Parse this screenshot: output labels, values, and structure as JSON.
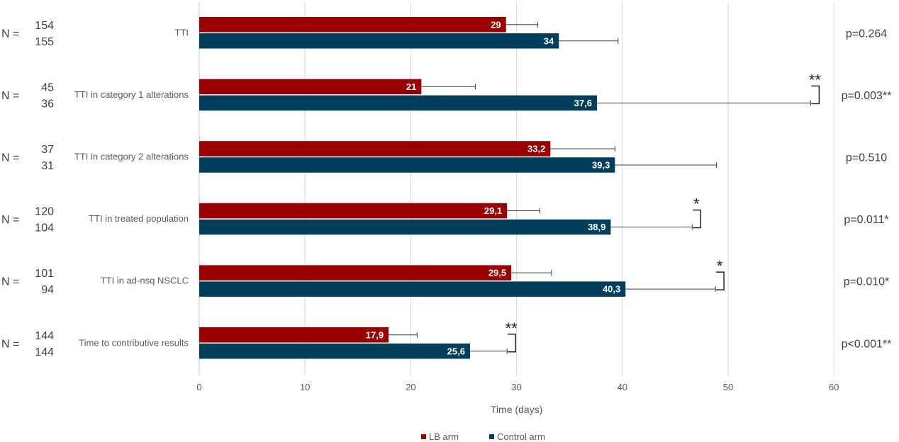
{
  "chart_data": {
    "type": "bar",
    "orientation": "horizontal",
    "categories": [
      "TTI",
      "TTI in category 1 alterations",
      "TTI in category 2 alterations",
      "TTI in treated population",
      "TTI in ad-nsq NSCLC",
      "Time to contributive results"
    ],
    "series": [
      {
        "name": "LB arm",
        "color": "#9B0000",
        "values": [
          29,
          21,
          33.2,
          29.1,
          29.5,
          17.9
        ],
        "labels": [
          "29",
          "21",
          "33,2",
          "29,1",
          "29,5",
          "17,9"
        ],
        "error_upper": [
          32,
          26.1,
          39.3,
          32.2,
          33.3,
          20.6
        ],
        "n": [
          "154",
          "45",
          "37",
          "120",
          "101",
          "144"
        ]
      },
      {
        "name": "Control arm",
        "color": "#003F5C",
        "values": [
          34,
          37.6,
          39.3,
          38.9,
          40.3,
          25.6
        ],
        "labels": [
          "34",
          "37,6",
          "39,3",
          "38,9",
          "40,3",
          "25,6"
        ],
        "error_upper": [
          39.6,
          57.8,
          48.9,
          46.6,
          48.8,
          29.1
        ],
        "n": [
          "155",
          "36",
          "31",
          "104",
          "94",
          "144"
        ]
      }
    ],
    "p_values": [
      "p=0.264",
      "p=0.003**",
      "p=0.510",
      "p=0.011*",
      "p=0.010*",
      "p<0.001**"
    ],
    "significance": [
      "",
      "**",
      "",
      "*",
      "*",
      "**"
    ],
    "n_label": "N =",
    "xlabel": "Time (days)",
    "xlim": [
      0,
      60
    ],
    "xticks": [
      0,
      10,
      20,
      30,
      40,
      50,
      60
    ],
    "grid": true,
    "legend_position": "bottom"
  }
}
